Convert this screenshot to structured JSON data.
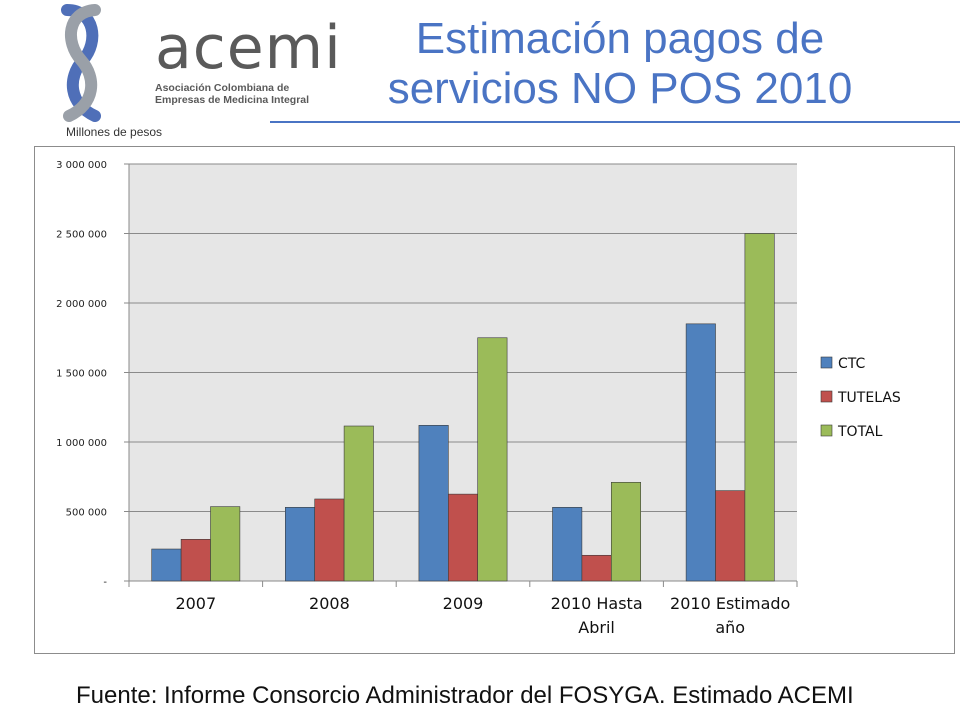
{
  "logo": {
    "word": "acemi",
    "subtitle_lines": [
      "Asociación Colombiana de",
      "Empresas de Medicina Integral"
    ]
  },
  "title_lines": [
    "Estimación pagos de",
    "servicios NO POS 2010"
  ],
  "units_note": "Millones de pesos",
  "source": "Fuente: Informe Consorcio Administrador del FOSYGA. Estimado ACEMI",
  "colors": {
    "title": "#4a74c4",
    "CTC": "#4f81bd",
    "TUTELAS": "#c0504d",
    "TOTAL": "#9bbb59",
    "plot_bg": "#e6e6e6"
  },
  "chart_data": {
    "type": "bar",
    "title": "",
    "xlabel": "",
    "ylabel": "",
    "categories": [
      [
        "2007"
      ],
      [
        "2008"
      ],
      [
        "2009"
      ],
      [
        "2010 Hasta",
        "Abril"
      ],
      [
        "2010 Estimado",
        "año"
      ]
    ],
    "series": [
      {
        "name": "CTC",
        "values": [
          230000,
          530000,
          1120000,
          530000,
          1850000
        ]
      },
      {
        "name": "TUTELAS",
        "values": [
          300000,
          590000,
          625000,
          185000,
          650000
        ]
      },
      {
        "name": "TOTAL",
        "values": [
          535000,
          1115000,
          1750000,
          710000,
          2500000
        ]
      }
    ],
    "ylim": [
      0,
      3000000
    ],
    "yticks": [
      0,
      500000,
      1000000,
      1500000,
      2000000,
      2500000,
      3000000
    ],
    "ytick_labels": [
      "-",
      "500 000",
      "1 000 000",
      "1 500 000",
      "2 000 000",
      "2 500 000",
      "3 000 000"
    ],
    "grid": true,
    "legend_position": "right"
  }
}
